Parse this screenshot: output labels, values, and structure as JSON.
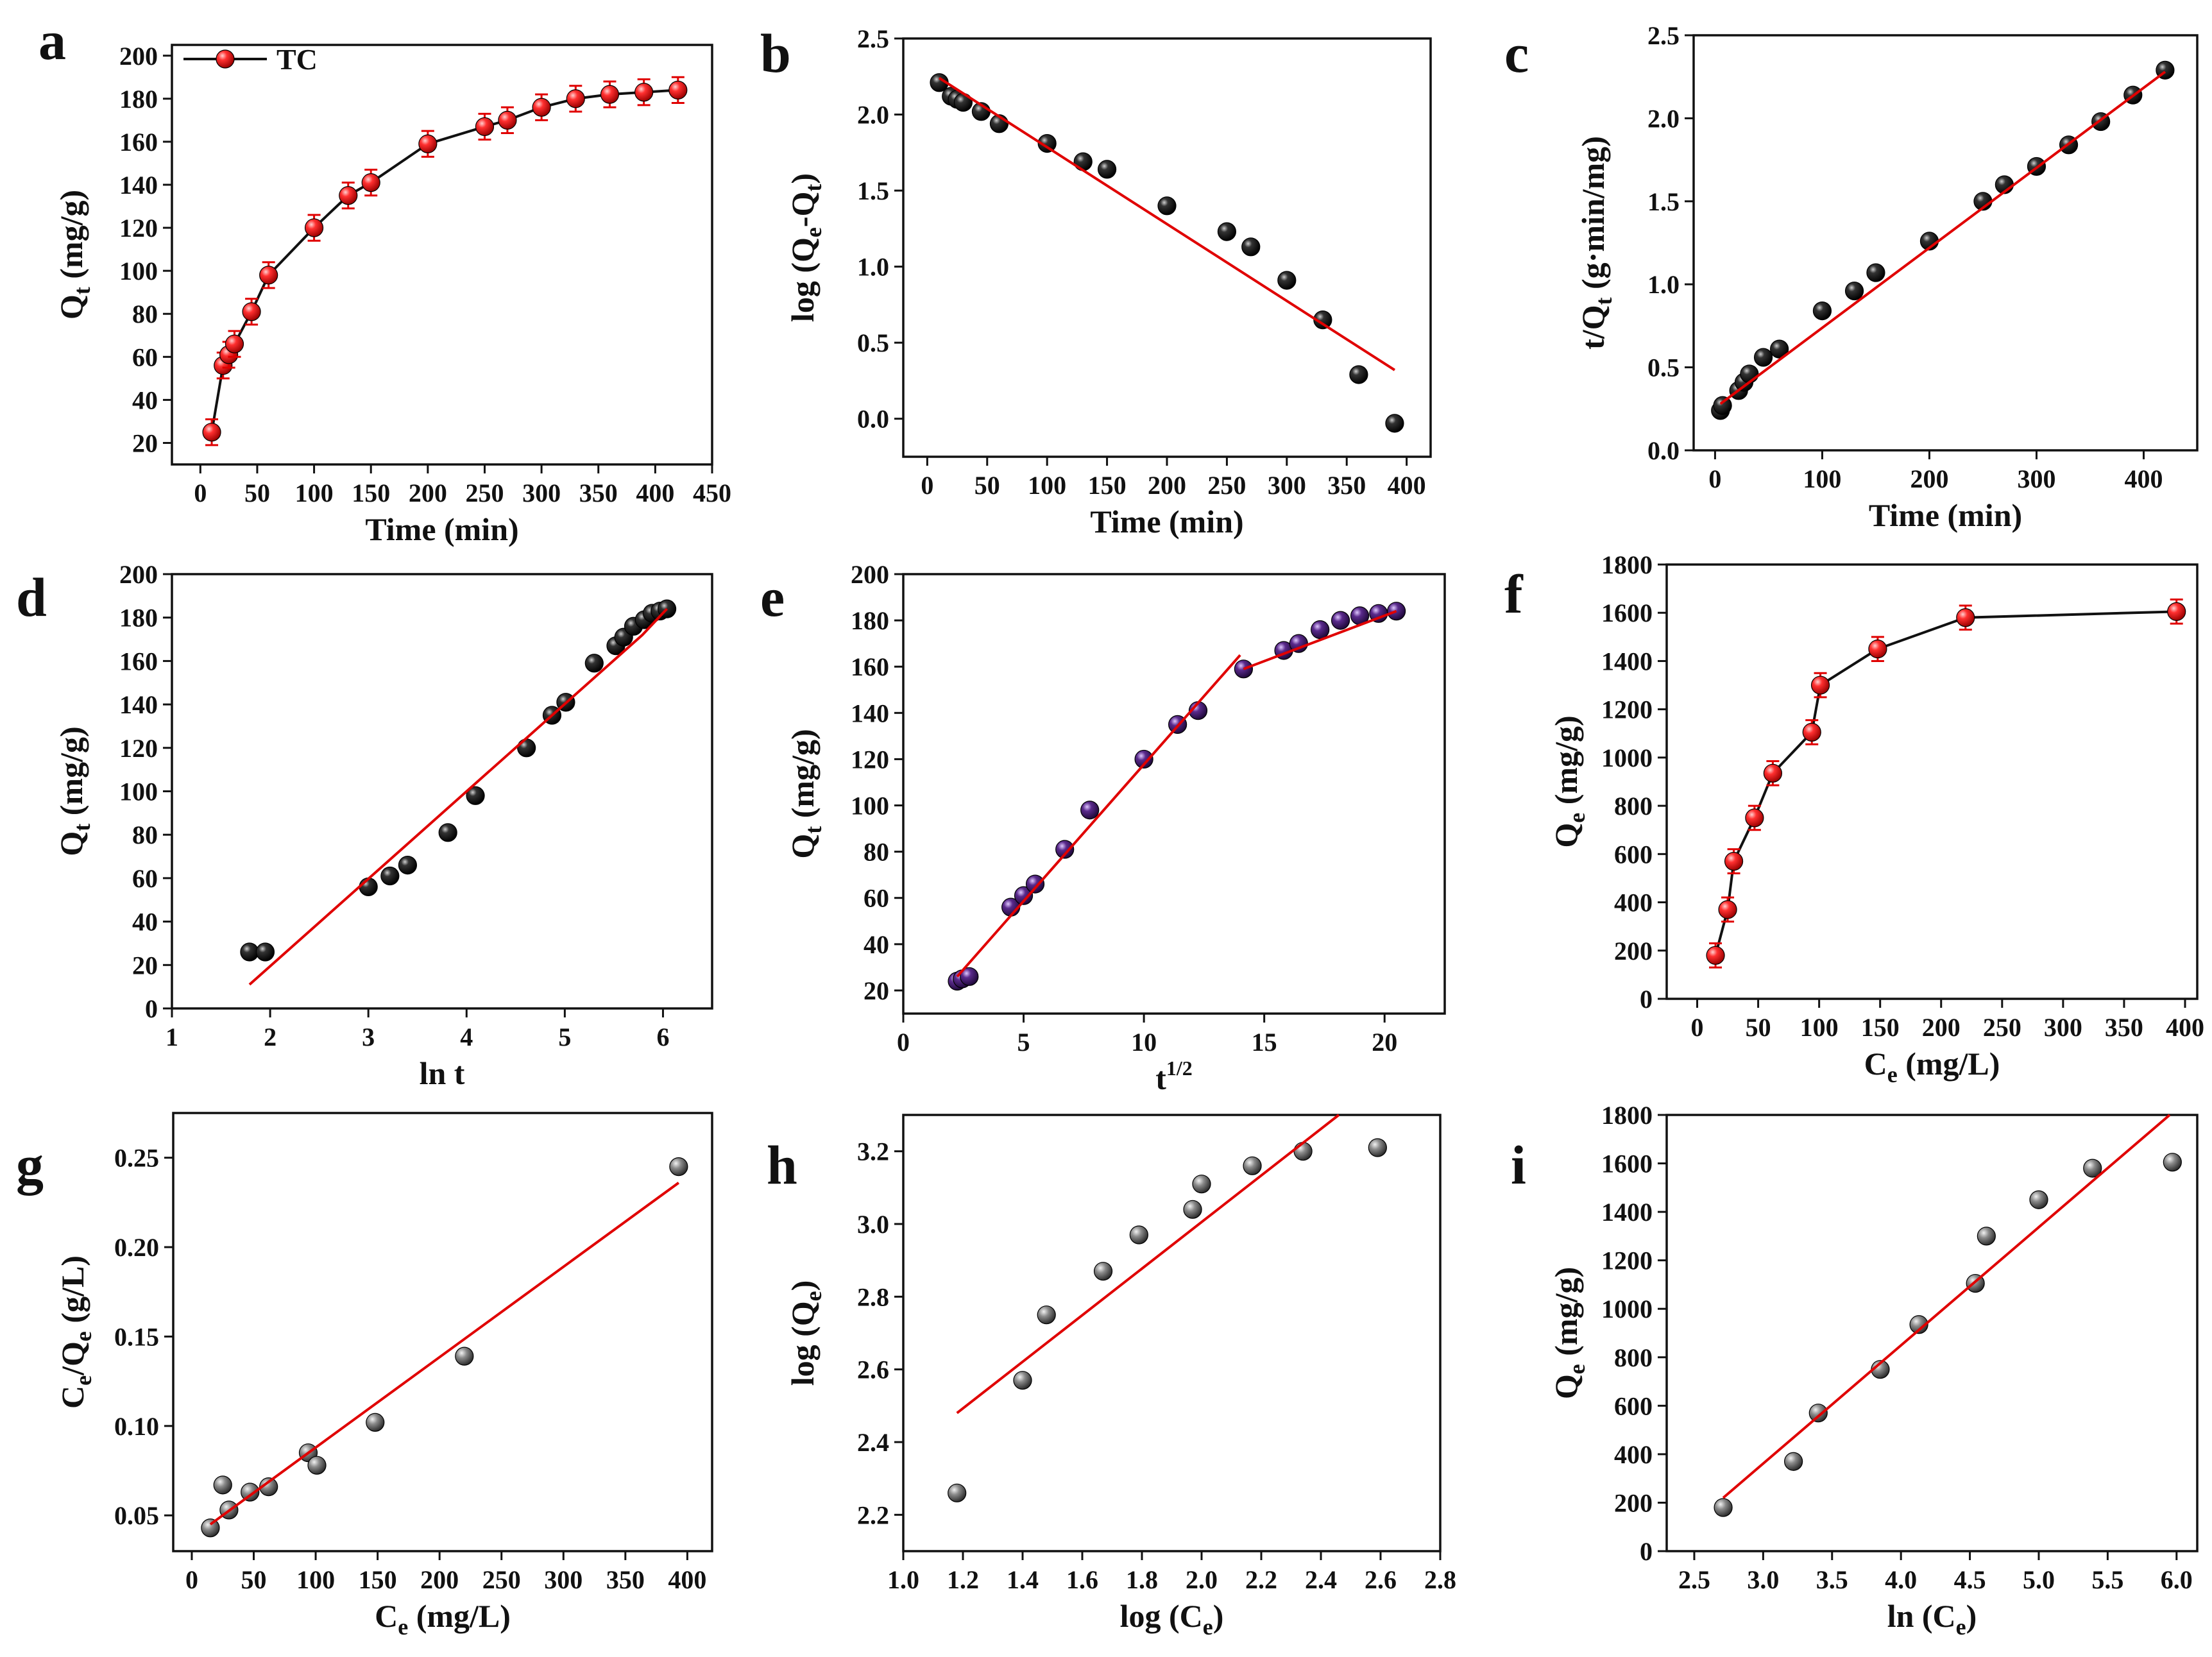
{
  "chart_data": [
    {
      "id": "a",
      "panel_label": "a",
      "type": "line",
      "xlabel": "Time (min)",
      "ylabel": "Q",
      "ylabel_sub": "t",
      "ylabel_tail": " (mg/g)",
      "xlim": [
        -25,
        450
      ],
      "ylim": [
        10,
        205
      ],
      "xticks": [
        0,
        50,
        100,
        150,
        200,
        250,
        300,
        350,
        400,
        450
      ],
      "yticks": [
        20,
        40,
        60,
        80,
        100,
        120,
        140,
        160,
        180,
        200
      ],
      "series": [
        {
          "name": "TC",
          "connect": "line",
          "marker": "red",
          "errorbar": 6,
          "x": [
            10,
            20,
            25,
            30,
            45,
            60,
            100,
            130,
            150,
            200,
            250,
            270,
            300,
            330,
            360,
            390,
            420
          ],
          "y": [
            25,
            56,
            61,
            66,
            81,
            98,
            120,
            135,
            141,
            159,
            167,
            170,
            176,
            180,
            182,
            183,
            184
          ]
        }
      ],
      "legend": {
        "position": "top-left",
        "label": "TC"
      }
    },
    {
      "id": "b",
      "panel_label": "b",
      "type": "scatter",
      "xlabel": "Time (min)",
      "ylabel": "log (Q",
      "ylabel_sub": "e",
      "ylabel_tail": "-Q",
      "ylabel_sub2": "t",
      "ylabel_tail2": ")",
      "xlim": [
        -20,
        420
      ],
      "ylim": [
        -0.25,
        2.5
      ],
      "xticks": [
        0,
        50,
        100,
        150,
        200,
        250,
        300,
        350,
        400
      ],
      "yticks": [
        0.0,
        0.5,
        1.0,
        1.5,
        2.0,
        2.5
      ],
      "series": [
        {
          "name": "data",
          "marker": "black",
          "x": [
            10,
            20,
            25,
            30,
            45,
            60,
            100,
            130,
            150,
            200,
            250,
            270,
            300,
            330,
            360,
            390
          ],
          "y": [
            2.21,
            2.12,
            2.1,
            2.08,
            2.02,
            1.94,
            1.81,
            1.69,
            1.64,
            1.4,
            1.23,
            1.13,
            0.91,
            0.65,
            0.29,
            -0.03
          ]
        },
        {
          "name": "fit",
          "line": "red",
          "x": [
            10,
            390
          ],
          "y": [
            2.24,
            0.32
          ]
        }
      ]
    },
    {
      "id": "c",
      "panel_label": "c",
      "type": "scatter",
      "xlabel": "Time (min)",
      "ylabel": "t/Q",
      "ylabel_sub": "t",
      "ylabel_tail": " (g·min/mg)",
      "xlim": [
        -20,
        450
      ],
      "ylim": [
        0,
        2.5
      ],
      "xticks": [
        0,
        100,
        200,
        300,
        400
      ],
      "yticks": [
        0.0,
        0.5,
        1.0,
        1.5,
        2.0,
        2.5
      ],
      "series": [
        {
          "name": "data",
          "marker": "black",
          "x": [
            5,
            7,
            22,
            27,
            32,
            45,
            60,
            100,
            130,
            150,
            200,
            250,
            270,
            300,
            330,
            360,
            390,
            420
          ],
          "y": [
            0.24,
            0.27,
            0.36,
            0.41,
            0.46,
            0.56,
            0.61,
            0.84,
            0.96,
            1.07,
            1.26,
            1.5,
            1.6,
            1.71,
            1.84,
            1.98,
            2.14,
            2.29
          ]
        },
        {
          "name": "fit",
          "line": "red",
          "x": [
            5,
            420
          ],
          "y": [
            0.28,
            2.28
          ]
        }
      ]
    },
    {
      "id": "d",
      "panel_label": "d",
      "type": "scatter",
      "xlabel": "ln t",
      "ylabel": "Q",
      "ylabel_sub": "t",
      "ylabel_tail": " (mg/g)",
      "xlim": [
        1,
        6.5
      ],
      "ylim": [
        0,
        200
      ],
      "xticks": [
        1,
        2,
        3,
        4,
        5,
        6
      ],
      "yticks": [
        0,
        20,
        40,
        60,
        80,
        100,
        120,
        140,
        160,
        180,
        200
      ],
      "series": [
        {
          "name": "data",
          "marker": "black",
          "x": [
            1.79,
            1.95,
            3.0,
            3.22,
            3.4,
            3.81,
            4.09,
            4.61,
            4.87,
            5.01,
            5.3,
            5.52,
            5.6,
            5.7,
            5.81,
            5.89,
            5.97,
            6.04
          ],
          "y": [
            26,
            26,
            56,
            61,
            66,
            81,
            98,
            120,
            135,
            141,
            159,
            167,
            171,
            176,
            179,
            182,
            183,
            184
          ]
        },
        {
          "name": "fit",
          "line": "red",
          "x": [
            1.79,
            5.79,
            6.04
          ],
          "y": [
            11,
            172,
            184
          ]
        }
      ]
    },
    {
      "id": "e",
      "panel_label": "e",
      "type": "scatter",
      "xlabel": "t",
      "xlabel_sup": "1/2",
      "ylabel": "Q",
      "ylabel_sub": "t",
      "ylabel_tail": " (mg/g)",
      "xlim": [
        0,
        22.5
      ],
      "ylim": [
        10,
        200
      ],
      "xticks": [
        0,
        5,
        10,
        15,
        20
      ],
      "yticks": [
        20,
        40,
        60,
        80,
        100,
        120,
        140,
        160,
        180,
        200
      ],
      "series": [
        {
          "name": "data",
          "marker": "purple",
          "x": [
            2.24,
            2.45,
            2.74,
            4.47,
            5.0,
            5.48,
            6.71,
            7.75,
            10.0,
            11.4,
            12.25,
            14.14,
            15.81,
            16.43,
            17.32,
            18.17,
            18.97,
            19.75,
            20.49
          ],
          "y": [
            24,
            25,
            26,
            56,
            61,
            66,
            81,
            98,
            120,
            135,
            141,
            159,
            167,
            170,
            176,
            180,
            182,
            183,
            184
          ]
        },
        {
          "name": "fit-1",
          "line": "red",
          "x": [
            2.24,
            14.0
          ],
          "y": [
            26,
            165
          ]
        },
        {
          "name": "fit-2",
          "line": "red",
          "x": [
            14.14,
            20.49
          ],
          "y": [
            159,
            184
          ]
        }
      ]
    },
    {
      "id": "f",
      "panel_label": "f",
      "type": "line",
      "xlabel": "C",
      "xlabel_sub": "e",
      "xlabel_tail": " (mg/L)",
      "ylabel": "Q",
      "ylabel_sub": "e",
      "ylabel_tail": " (mg/g)",
      "xlim": [
        -25,
        410
      ],
      "ylim": [
        0,
        1800
      ],
      "xticks": [
        0,
        50,
        100,
        150,
        200,
        250,
        300,
        350,
        400
      ],
      "yticks": [
        0,
        200,
        400,
        600,
        800,
        1000,
        1200,
        1400,
        1600,
        1800
      ],
      "series": [
        {
          "name": "data",
          "connect": "line",
          "marker": "red",
          "errorbar": 50,
          "x": [
            15,
            25,
            30,
            47,
            62,
            94,
            101,
            148,
            220,
            393
          ],
          "y": [
            180,
            370,
            570,
            750,
            935,
            1105,
            1300,
            1450,
            1580,
            1605
          ]
        }
      ]
    },
    {
      "id": "g",
      "panel_label": "g",
      "type": "scatter",
      "xlabel": "C",
      "xlabel_sub": "e",
      "xlabel_tail": " (mg/L)",
      "ylabel": "C",
      "ylabel_sub": "e",
      "ylabel_tail": "/Q",
      "ylabel_sub2": "e",
      "ylabel_tail2": " (g/L)",
      "xlim": [
        -15,
        420
      ],
      "ylim": [
        0.03,
        0.275
      ],
      "xticks": [
        0,
        50,
        100,
        150,
        200,
        250,
        300,
        350,
        400
      ],
      "yticks": [
        0.05,
        0.1,
        0.15,
        0.2,
        0.25
      ],
      "series": [
        {
          "name": "data",
          "marker": "gray",
          "x": [
            15,
            25,
            30,
            47,
            62,
            94,
            101,
            148,
            220,
            393
          ],
          "y": [
            0.043,
            0.067,
            0.053,
            0.063,
            0.066,
            0.085,
            0.078,
            0.102,
            0.139,
            0.245
          ]
        },
        {
          "name": "fit",
          "line": "red",
          "x": [
            15,
            393
          ],
          "y": [
            0.045,
            0.236
          ]
        }
      ]
    },
    {
      "id": "h",
      "panel_label": "h",
      "type": "scatter",
      "xlabel": "log (C",
      "xlabel_sub": "e",
      "xlabel_tail": ")",
      "ylabel": "log (Q",
      "ylabel_sub": "e",
      "ylabel_tail": ")",
      "xlim": [
        1.0,
        2.8
      ],
      "ylim": [
        2.1,
        3.3
      ],
      "xticks": [
        1.0,
        1.2,
        1.4,
        1.6,
        1.8,
        2.0,
        2.2,
        2.4,
        2.6,
        2.8
      ],
      "yticks": [
        2.2,
        2.4,
        2.6,
        2.8,
        3.0,
        3.2
      ],
      "series": [
        {
          "name": "data",
          "marker": "gray",
          "x": [
            1.18,
            1.4,
            1.48,
            1.67,
            1.79,
            1.97,
            2.0,
            2.17,
            2.34,
            2.59
          ],
          "y": [
            2.26,
            2.57,
            2.75,
            2.87,
            2.97,
            3.04,
            3.11,
            3.16,
            3.2,
            3.21
          ]
        },
        {
          "name": "fit",
          "line": "red",
          "x": [
            1.18,
            2.46
          ],
          "y": [
            2.48,
            3.3
          ]
        }
      ]
    },
    {
      "id": "i",
      "panel_label": "i",
      "type": "scatter",
      "xlabel": "ln (C",
      "xlabel_sub": "e",
      "xlabel_tail": ")",
      "ylabel": "Q",
      "ylabel_sub": "e",
      "ylabel_tail": " (mg/g)",
      "xlim": [
        2.3,
        6.15
      ],
      "ylim": [
        0,
        1800
      ],
      "xticks": [
        2.5,
        3.0,
        3.5,
        4.0,
        4.5,
        5.0,
        5.5,
        6.0
      ],
      "yticks": [
        0,
        200,
        400,
        600,
        800,
        1000,
        1200,
        1400,
        1600,
        1800
      ],
      "series": [
        {
          "name": "data",
          "marker": "gray",
          "x": [
            2.71,
            3.22,
            3.4,
            3.85,
            4.13,
            4.54,
            4.62,
            5.0,
            5.39,
            5.97
          ],
          "y": [
            180,
            370,
            570,
            750,
            935,
            1105,
            1300,
            1450,
            1580,
            1605
          ]
        },
        {
          "name": "fit",
          "line": "red",
          "x": [
            2.71,
            5.95
          ],
          "y": [
            220,
            1800
          ]
        }
      ]
    }
  ]
}
